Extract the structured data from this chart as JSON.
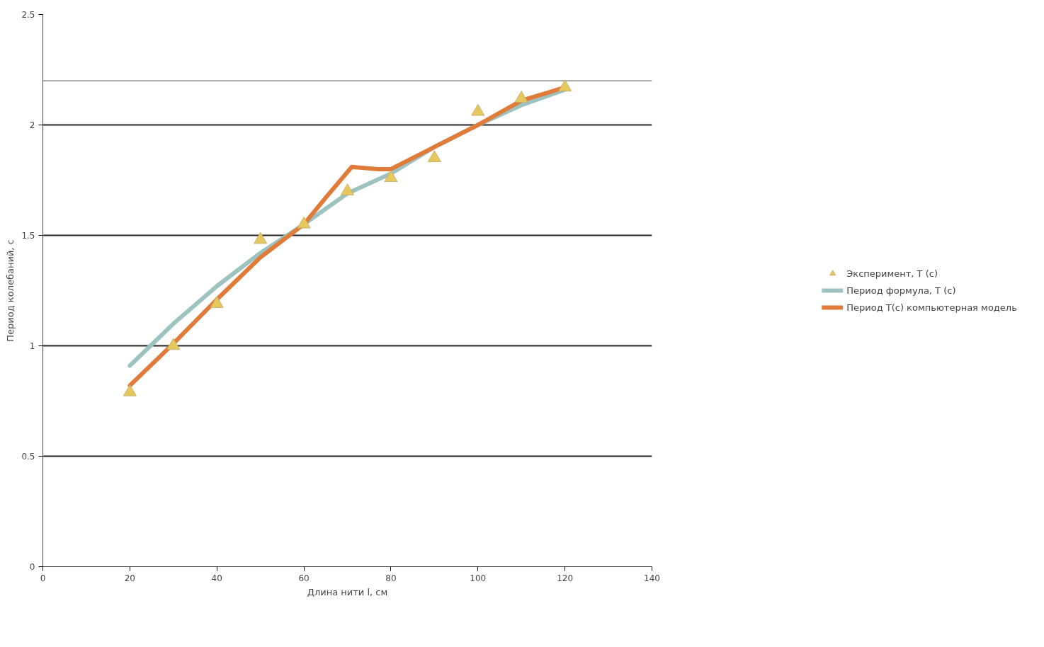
{
  "chart_data": {
    "type": "line",
    "xlabel": "Длина нити l, см",
    "ylabel": "Период колебаний, с",
    "xlim": [
      0,
      140
    ],
    "xticks": [
      0,
      20,
      40,
      60,
      80,
      100,
      120,
      140
    ],
    "ylim": [
      0,
      2.5
    ],
    "yticks": [
      0,
      0.5,
      1,
      1.5,
      2,
      2.5
    ],
    "grid": "y",
    "legend": "right",
    "series": [
      {
        "name": "Эксперимент, T (с)",
        "type": "scatter",
        "marker": "triangle",
        "color": "#e6c85c",
        "x": [
          20,
          30,
          40,
          50,
          60,
          70,
          80,
          90,
          100,
          110,
          120
        ],
        "values": [
          0.79,
          1.0,
          1.19,
          1.48,
          1.55,
          1.7,
          1.76,
          1.85,
          2.06,
          2.12,
          2.17
        ]
      },
      {
        "name": "Период формула, T (с)",
        "type": "line",
        "color": "#9dc3c1",
        "x": [
          20,
          30,
          40,
          50,
          60,
          70,
          80,
          90,
          100,
          110,
          120
        ],
        "values": [
          0.91,
          1.1,
          1.27,
          1.42,
          1.55,
          1.69,
          1.78,
          1.9,
          2.0,
          2.09,
          2.16
        ]
      },
      {
        "name": "Период T(с) компьютерная модель",
        "type": "line",
        "color": "#e07b39",
        "x": [
          20,
          30,
          40,
          50,
          60,
          65,
          71,
          77,
          80,
          90,
          100,
          110,
          120
        ],
        "values": [
          0.82,
          1.01,
          1.21,
          1.4,
          1.55,
          1.67,
          1.81,
          1.8,
          1.8,
          1.9,
          2.0,
          2.11,
          2.17
        ]
      }
    ],
    "ref_lines": [
      {
        "axis": "y",
        "value": 2.2,
        "label": null,
        "color": "#555555"
      }
    ]
  }
}
